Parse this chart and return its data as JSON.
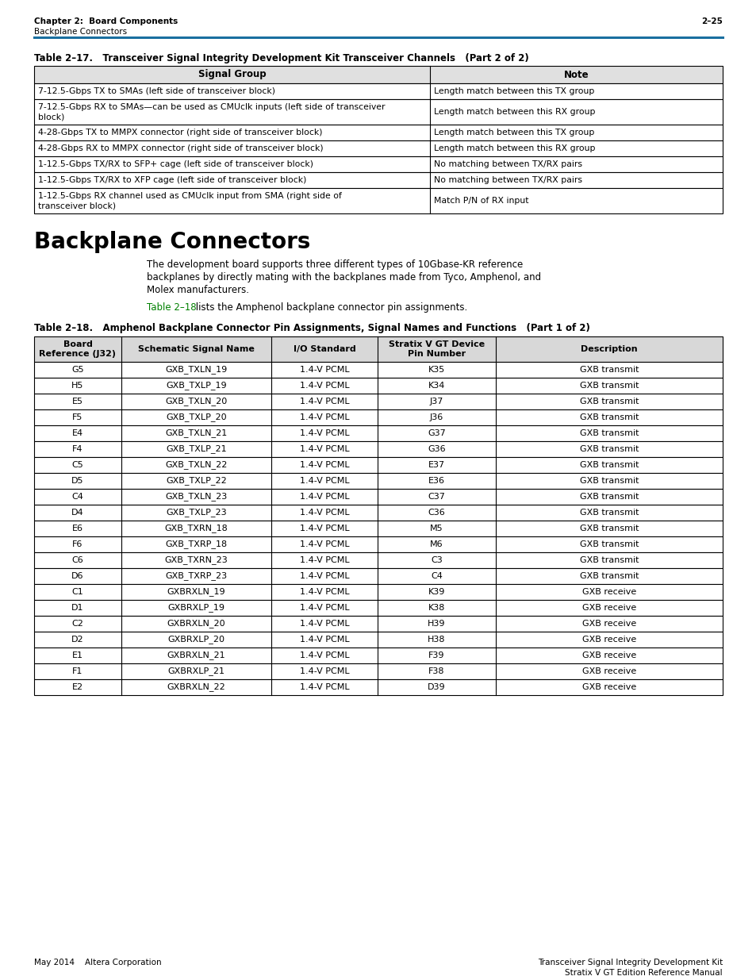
{
  "page_header_left": "Chapter 2:  Board Components",
  "page_header_left2": "Backplane Connectors",
  "page_header_right": "2–25",
  "header_line_color": "#1a6fa0",
  "table1_title": "Table 2–17.   Transceiver Signal Integrity Development Kit Transceiver Channels   (Part 2 of 2)",
  "table1_headers": [
    "Signal Group",
    "Note"
  ],
  "table1_rows": [
    [
      "7-12.5-Gbps TX to SMAs (left side of transceiver block)",
      "Length match between this TX group"
    ],
    [
      "7-12.5-Gbps RX to SMAs—can be used as CMUclk inputs (left side of transceiver\nblock)",
      "Length match between this RX group"
    ],
    [
      "4-28-Gbps TX to MMPX connector (right side of transceiver block)",
      "Length match between this TX group"
    ],
    [
      "4-28-Gbps RX to MMPX connector (right side of transceiver block)",
      "Length match between this RX group"
    ],
    [
      "1-12.5-Gbps TX/RX to SFP+ cage (left side of transceiver block)",
      "No matching between TX/RX pairs"
    ],
    [
      "1-12.5-Gbps TX/RX to XFP cage (left side of transceiver block)",
      "No matching between TX/RX pairs"
    ],
    [
      "1-12.5-Gbps RX channel used as CMUclk input from SMA (right side of\ntransceiver block)",
      "Match P/N of RX input"
    ]
  ],
  "section_title": "Backplane Connectors",
  "body_text_line1": "The development board supports three different types of 10Gbase-KR reference",
  "body_text_line2": "backplanes by directly mating with the backplanes made from Tyco, Amphenol, and",
  "body_text_line3": "Molex manufacturers.",
  "link_text": "Table 2–18",
  "link_suffix": " lists the Amphenol backplane connector pin assignments.",
  "link_color": "#008000",
  "table2_title": "Table 2–18.   Amphenol Backplane Connector Pin Assignments, Signal Names and Functions   (Part 1 of 2)",
  "table2_headers": [
    "Board\nReference (J32)",
    "Schematic Signal Name",
    "I/O Standard",
    "Stratix V GT Device\nPin Number",
    "Description"
  ],
  "table2_rows": [
    [
      "G5",
      "GXB_TXLN_19",
      "1.4-V PCML",
      "K35",
      "GXB transmit"
    ],
    [
      "H5",
      "GXB_TXLP_19",
      "1.4-V PCML",
      "K34",
      "GXB transmit"
    ],
    [
      "E5",
      "GXB_TXLN_20",
      "1.4-V PCML",
      "J37",
      "GXB transmit"
    ],
    [
      "F5",
      "GXB_TXLP_20",
      "1.4-V PCML",
      "J36",
      "GXB transmit"
    ],
    [
      "E4",
      "GXB_TXLN_21",
      "1.4-V PCML",
      "G37",
      "GXB transmit"
    ],
    [
      "F4",
      "GXB_TXLP_21",
      "1.4-V PCML",
      "G36",
      "GXB transmit"
    ],
    [
      "C5",
      "GXB_TXLN_22",
      "1.4-V PCML",
      "E37",
      "GXB transmit"
    ],
    [
      "D5",
      "GXB_TXLP_22",
      "1.4-V PCML",
      "E36",
      "GXB transmit"
    ],
    [
      "C4",
      "GXB_TXLN_23",
      "1.4-V PCML",
      "C37",
      "GXB transmit"
    ],
    [
      "D4",
      "GXB_TXLP_23",
      "1.4-V PCML",
      "C36",
      "GXB transmit"
    ],
    [
      "E6",
      "GXB_TXRN_18",
      "1.4-V PCML",
      "M5",
      "GXB transmit"
    ],
    [
      "F6",
      "GXB_TXRP_18",
      "1.4-V PCML",
      "M6",
      "GXB transmit"
    ],
    [
      "C6",
      "GXB_TXRN_23",
      "1.4-V PCML",
      "C3",
      "GXB transmit"
    ],
    [
      "D6",
      "GXB_TXRP_23",
      "1.4-V PCML",
      "C4",
      "GXB transmit"
    ],
    [
      "C1",
      "GXBRXLN_19",
      "1.4-V PCML",
      "K39",
      "GXB receive"
    ],
    [
      "D1",
      "GXBRXLP_19",
      "1.4-V PCML",
      "K38",
      "GXB receive"
    ],
    [
      "C2",
      "GXBRXLN_20",
      "1.4-V PCML",
      "H39",
      "GXB receive"
    ],
    [
      "D2",
      "GXBRXLP_20",
      "1.4-V PCML",
      "H38",
      "GXB receive"
    ],
    [
      "E1",
      "GXBRXLN_21",
      "1.4-V PCML",
      "F39",
      "GXB receive"
    ],
    [
      "F1",
      "GXBRXLP_21",
      "1.4-V PCML",
      "F38",
      "GXB receive"
    ],
    [
      "E2",
      "GXBRXLN_22",
      "1.4-V PCML",
      "D39",
      "GXB receive"
    ]
  ],
  "footer_left": "May 2014    Altera Corporation",
  "footer_right1": "Transceiver Signal Integrity Development Kit",
  "footer_right2": "Stratix V GT Edition Reference Manual",
  "bg_color": "#ffffff",
  "table_border_color": "#000000",
  "text_color": "#000000"
}
